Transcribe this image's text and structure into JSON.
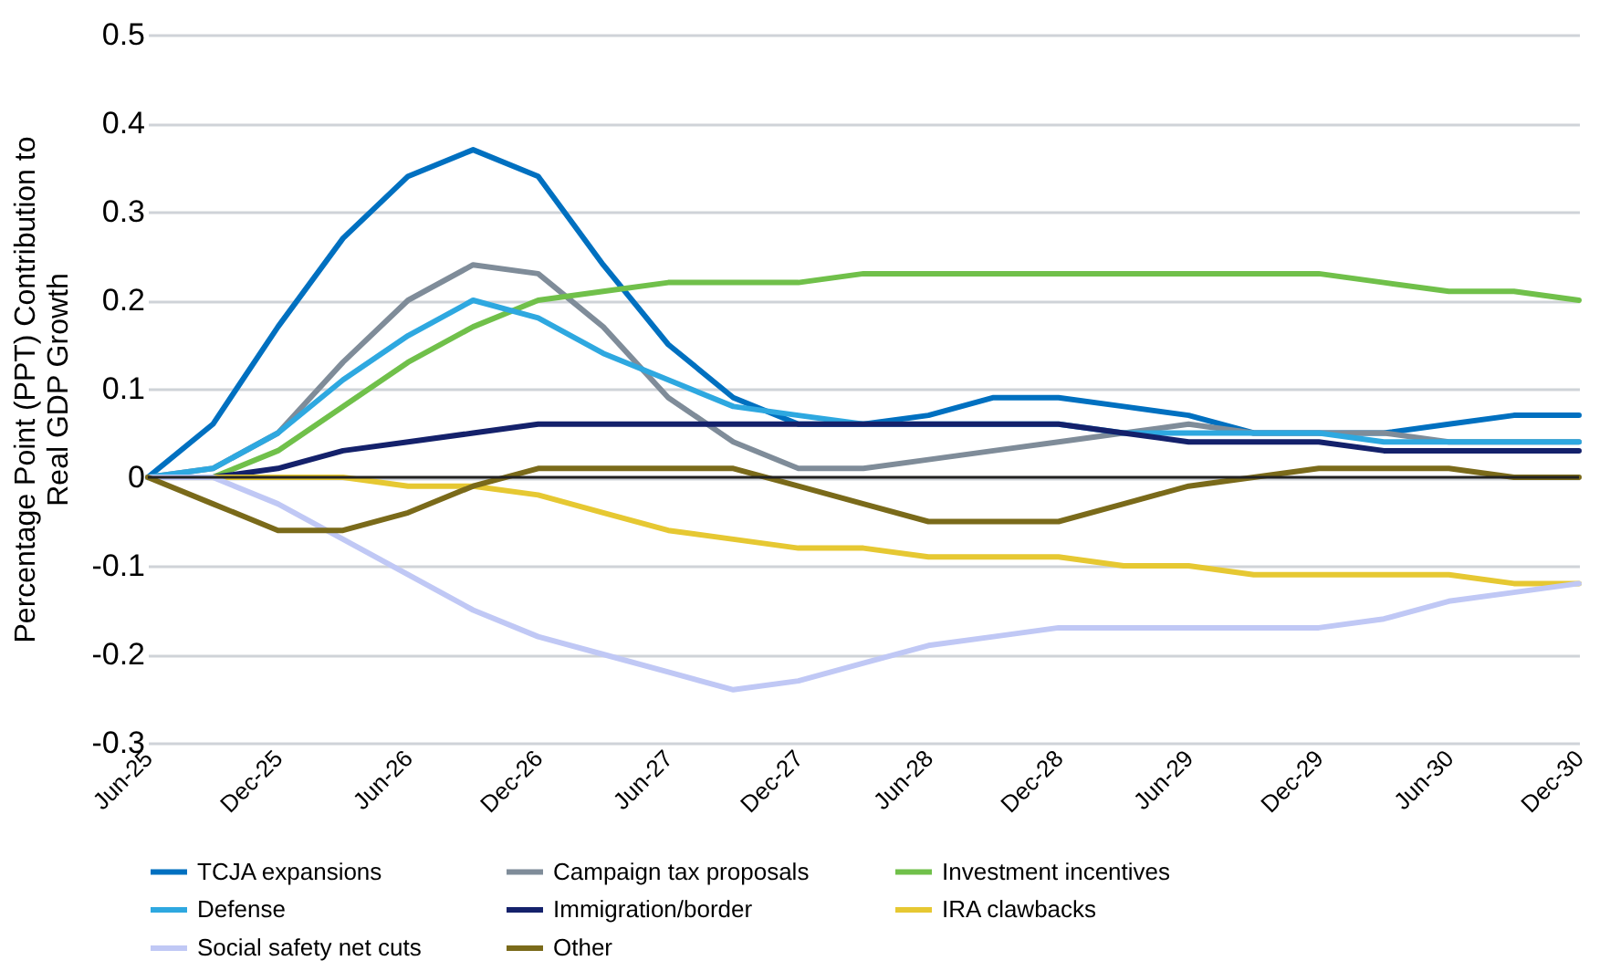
{
  "chart_data": {
    "type": "line",
    "ylabel": "Percentage Point (PPT) Contribution to Real GDP Growth",
    "categories": [
      "Jun-25",
      null,
      "Dec-25",
      null,
      "Jun-26",
      null,
      "Dec-26",
      null,
      "Jun-27",
      null,
      "Dec-27",
      null,
      "Jun-28",
      null,
      "Dec-28",
      null,
      "Jun-29",
      null,
      "Dec-29",
      null,
      "Jun-30",
      null,
      "Dec-30"
    ],
    "series": [
      {
        "name": "TCJA expansions",
        "color": "#0070c0",
        "values": [
          0,
          0.06,
          0.17,
          0.27,
          0.34,
          0.37,
          0.34,
          0.24,
          0.15,
          0.09,
          0.06,
          0.06,
          0.07,
          0.09,
          0.09,
          0.08,
          0.07,
          0.05,
          0.05,
          0.05,
          0.06,
          0.07,
          0.07
        ]
      },
      {
        "name": "Campaign tax proposals",
        "color": "#7f8c99",
        "values": [
          0,
          0.01,
          0.05,
          0.13,
          0.2,
          0.24,
          0.23,
          0.17,
          0.09,
          0.04,
          0.01,
          0.01,
          0.02,
          0.03,
          0.04,
          0.05,
          0.06,
          0.05,
          0.05,
          0.05,
          0.04,
          0.04,
          0.04
        ]
      },
      {
        "name": "Investment incentives",
        "color": "#70c04a",
        "values": [
          0,
          0,
          0.03,
          0.08,
          0.13,
          0.17,
          0.2,
          0.21,
          0.22,
          0.22,
          0.22,
          0.23,
          0.23,
          0.23,
          0.23,
          0.23,
          0.23,
          0.23,
          0.23,
          0.22,
          0.21,
          0.21,
          0.2
        ]
      },
      {
        "name": "Defense",
        "color": "#2ea8e0",
        "values": [
          0,
          0.01,
          0.05,
          0.11,
          0.16,
          0.2,
          0.18,
          0.14,
          0.11,
          0.08,
          0.07,
          0.06,
          0.06,
          0.06,
          0.06,
          0.05,
          0.05,
          0.05,
          0.05,
          0.04,
          0.04,
          0.04,
          0.04
        ]
      },
      {
        "name": "Immigration/border",
        "color": "#14216b",
        "values": [
          0,
          0,
          0.01,
          0.03,
          0.04,
          0.05,
          0.06,
          0.06,
          0.06,
          0.06,
          0.06,
          0.06,
          0.06,
          0.06,
          0.06,
          0.05,
          0.04,
          0.04,
          0.04,
          0.03,
          0.03,
          0.03,
          0.03
        ]
      },
      {
        "name": "IRA clawbacks",
        "color": "#e6c832",
        "values": [
          0,
          0,
          0,
          0,
          -0.01,
          -0.01,
          -0.02,
          -0.04,
          -0.06,
          -0.07,
          -0.08,
          -0.08,
          -0.09,
          -0.09,
          -0.09,
          -0.1,
          -0.1,
          -0.11,
          -0.11,
          -0.11,
          -0.11,
          -0.12,
          -0.12
        ]
      },
      {
        "name": "Social safety net cuts",
        "color": "#c0c8f5",
        "values": [
          0,
          0,
          -0.03,
          -0.07,
          -0.11,
          -0.15,
          -0.18,
          -0.2,
          -0.22,
          -0.24,
          -0.23,
          -0.21,
          -0.19,
          -0.18,
          -0.17,
          -0.17,
          -0.17,
          -0.17,
          -0.17,
          -0.16,
          -0.14,
          -0.13,
          -0.12
        ]
      },
      {
        "name": "Other",
        "color": "#7a6a1a",
        "values": [
          0,
          -0.03,
          -0.06,
          -0.06,
          -0.04,
          -0.01,
          0.01,
          0.01,
          0.01,
          0.01,
          -0.01,
          -0.03,
          -0.05,
          -0.05,
          -0.05,
          -0.03,
          -0.01,
          0,
          0.01,
          0.01,
          0.01,
          0,
          0
        ]
      }
    ],
    "ylim": [
      -0.3,
      0.5
    ],
    "yticks": [
      -0.3,
      -0.2,
      -0.1,
      0,
      0.1,
      0.2,
      0.3,
      0.4,
      0.5
    ],
    "ref_lines": [
      {
        "axis": "y",
        "value": 0,
        "color": "#222222"
      }
    ],
    "grid": "y",
    "legend": "bottom",
    "line_style": "solid",
    "marker": "none"
  }
}
